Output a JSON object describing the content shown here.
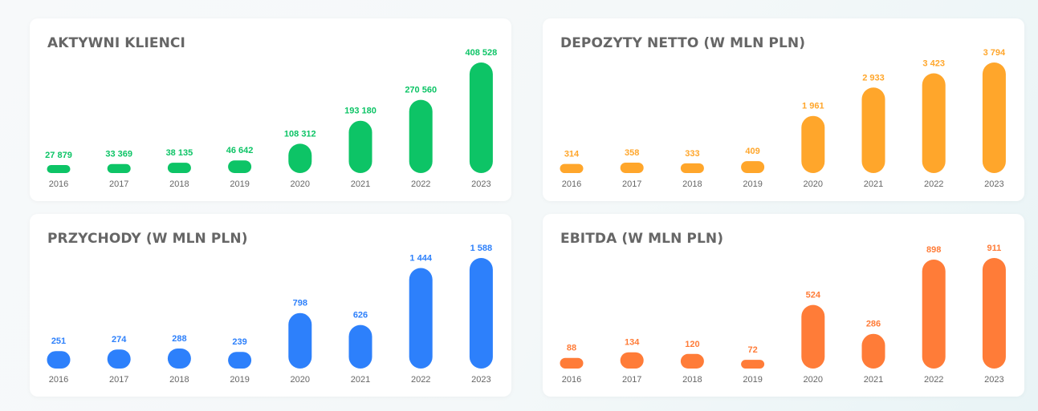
{
  "chart_data": [
    {
      "type": "bar",
      "title": "AKTYWNI KLIENCI",
      "color": "#0dc466",
      "categories": [
        "2016",
        "2017",
        "2018",
        "2019",
        "2020",
        "2021",
        "2022",
        "2023"
      ],
      "values": [
        27879,
        33369,
        38135,
        46642,
        108312,
        193180,
        270560,
        408528
      ],
      "labels": [
        "27 879",
        "33 369",
        "38 135",
        "46 642",
        "108 312",
        "193 180",
        "270 560",
        "408 528"
      ]
    },
    {
      "type": "bar",
      "title": "DEPOZYTY NETTO (W MLN PLN)",
      "color": "#ffa62b",
      "categories": [
        "2016",
        "2017",
        "2018",
        "2019",
        "2020",
        "2021",
        "2022",
        "2023"
      ],
      "values": [
        314,
        358,
        333,
        409,
        1961,
        2933,
        3423,
        3794
      ],
      "labels": [
        "314",
        "358",
        "333",
        "409",
        "1 961",
        "2 933",
        "3 423",
        "3 794"
      ]
    },
    {
      "type": "bar",
      "title": "PRZYCHODY (W MLN PLN)",
      "color": "#2d80fb",
      "categories": [
        "2016",
        "2017",
        "2018",
        "2019",
        "2020",
        "2021",
        "2022",
        "2023"
      ],
      "values": [
        251,
        274,
        288,
        239,
        798,
        626,
        1444,
        1588
      ],
      "labels": [
        "251",
        "274",
        "288",
        "239",
        "798",
        "626",
        "1 444",
        "1 588"
      ]
    },
    {
      "type": "bar",
      "title": "EBITDA (W MLN PLN)",
      "color": "#ff7c38",
      "categories": [
        "2016",
        "2017",
        "2018",
        "2019",
        "2020",
        "2021",
        "2022",
        "2023"
      ],
      "values": [
        88,
        134,
        120,
        72,
        524,
        286,
        898,
        911
      ],
      "labels": [
        "88",
        "134",
        "120",
        "72",
        "524",
        "286",
        "898",
        "911"
      ]
    }
  ]
}
